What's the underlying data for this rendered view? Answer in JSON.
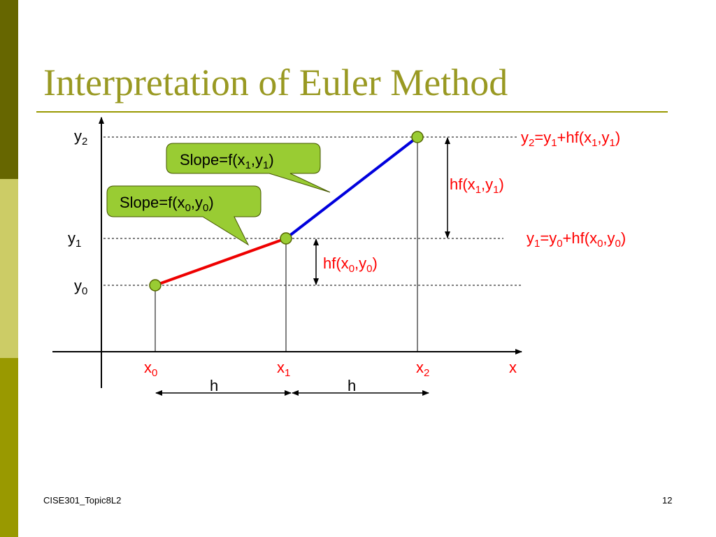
{
  "title": "Interpretation of Euler Method",
  "axes": {
    "y_labels": [
      [
        "y",
        "2"
      ],
      [
        "y",
        "1"
      ],
      [
        "y",
        "0"
      ]
    ],
    "x_labels": [
      [
        "x",
        "0"
      ],
      [
        "x",
        "1"
      ],
      [
        "x",
        "2"
      ]
    ],
    "x_axis": [
      "x"
    ]
  },
  "steps": [
    [
      "h"
    ],
    [
      "h"
    ]
  ],
  "callouts": [
    [
      "Slope=f(x",
      "1",
      ",y",
      "1",
      ")"
    ],
    [
      "Slope=f(x",
      "0",
      ",y",
      "0",
      ")"
    ]
  ],
  "increments": [
    [
      "hf(x",
      "1",
      ",y",
      "1",
      ")"
    ],
    [
      "hf(x",
      "0",
      ",y",
      "0",
      ")"
    ]
  ],
  "formulas": [
    [
      "y",
      "2",
      "=y",
      "1",
      "+hf(x",
      "1",
      ",y",
      "1",
      ")"
    ],
    [
      "y",
      "1",
      "=y",
      "0",
      "+hf(x",
      "0",
      ",y",
      "0",
      ")"
    ]
  ],
  "footer": {
    "left": "CISE301_Topic8L2",
    "right": "12"
  }
}
